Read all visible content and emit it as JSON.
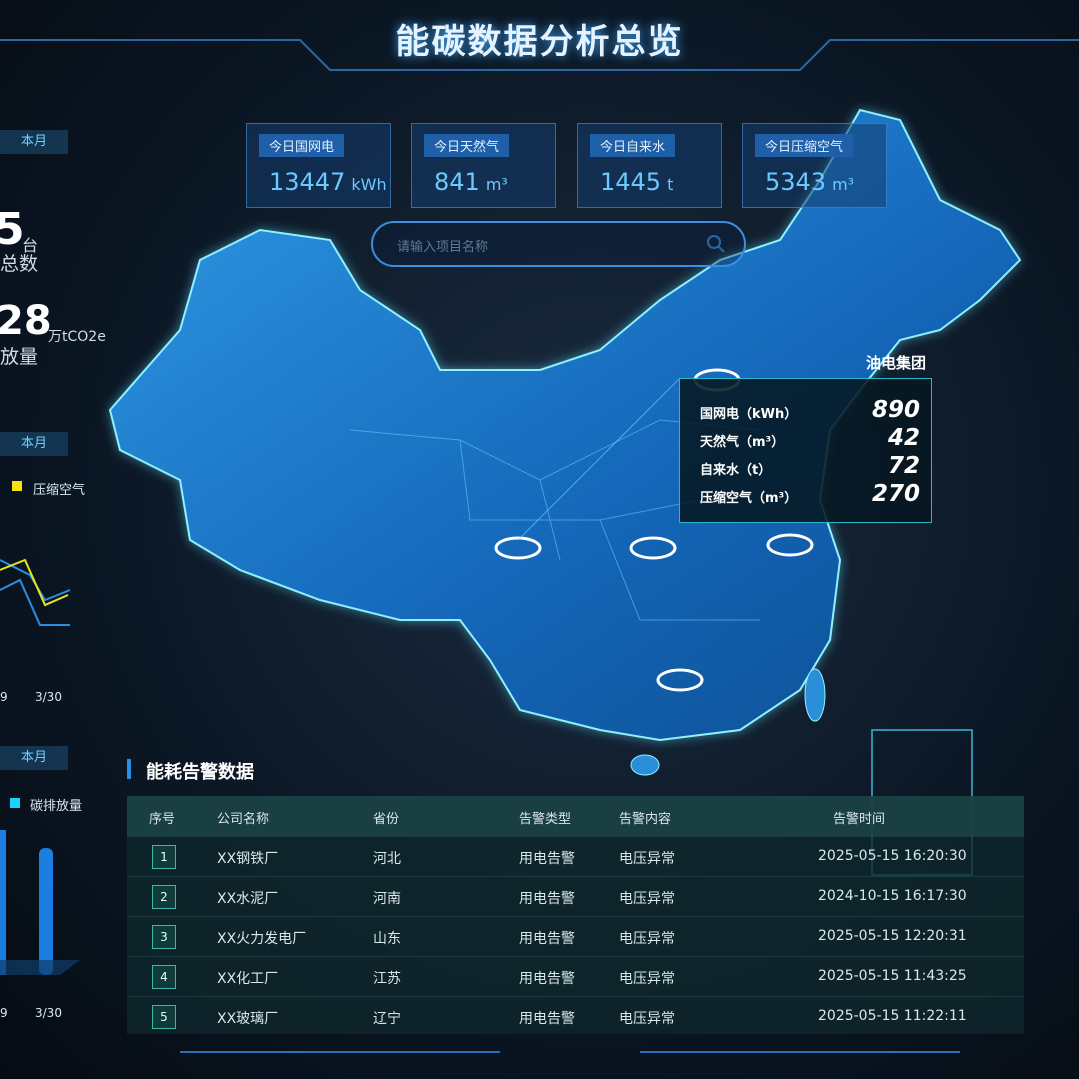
{
  "header": {
    "title": "能碳数据分析总览"
  },
  "left_panel": {
    "badges": [
      "本月",
      "本月",
      "本月"
    ],
    "device_count": {
      "value": 5,
      "unit": "台",
      "label": "总数"
    },
    "emission": {
      "value": 28,
      "unit": "万tCO2e",
      "label": "放量"
    },
    "line_chart": {
      "legend": "压缩空气",
      "x_labels": [
        "9",
        "3/30"
      ]
    },
    "bar_chart": {
      "legend": "碳排放量",
      "x_labels": [
        "9",
        "3/30"
      ]
    }
  },
  "kpis": [
    {
      "label": "今日国网电",
      "value": 13447,
      "unit": "kWh"
    },
    {
      "label": "今日天然气",
      "value": 841,
      "unit": "m³"
    },
    {
      "label": "今日自来水",
      "value": 1445,
      "unit": "t"
    },
    {
      "label": "今日压缩空气",
      "value": 5343,
      "unit": "m³"
    }
  ],
  "search": {
    "placeholder": "请输入项目名称"
  },
  "tooltip": {
    "title": "油电集团",
    "rows": [
      {
        "label": "国网电（kWh）",
        "value": 890
      },
      {
        "label": "天然气（m³）",
        "value": 42
      },
      {
        "label": "自来水（t）",
        "value": 72
      },
      {
        "label": "压缩空气（m³）",
        "value": 270
      }
    ]
  },
  "alarm_table": {
    "title": "能耗告警数据",
    "columns": [
      "序号",
      "公司名称",
      "省份",
      "告警类型",
      "告警内容",
      "告警时间"
    ],
    "rows": [
      [
        1,
        "XX钢铁厂",
        "河北",
        "用电告警",
        "电压异常",
        "2025-05-15 16:20:30"
      ],
      [
        2,
        "XX水泥厂",
        "河南",
        "用电告警",
        "电压异常",
        "2024-10-15 16:17:30"
      ],
      [
        3,
        "XX火力发电厂",
        "山东",
        "用电告警",
        "电压异常",
        "2025-05-15 12:20:31"
      ],
      [
        4,
        "XX化工厂",
        "江苏",
        "用电告警",
        "电压异常",
        "2025-05-15 11:43:25"
      ],
      [
        5,
        "XX玻璃厂",
        "辽宁",
        "用电告警",
        "电压异常",
        "2025-05-15 11:22:11"
      ]
    ]
  }
}
